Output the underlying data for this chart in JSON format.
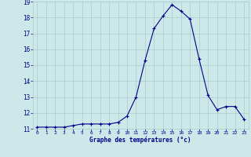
{
  "hours": [
    0,
    1,
    2,
    3,
    4,
    5,
    6,
    7,
    8,
    9,
    10,
    11,
    12,
    13,
    14,
    15,
    16,
    17,
    18,
    19,
    20,
    21,
    22,
    23
  ],
  "temps": [
    11.1,
    11.1,
    11.1,
    11.1,
    11.2,
    11.3,
    11.3,
    11.3,
    11.3,
    11.4,
    11.8,
    13.0,
    15.3,
    17.3,
    18.1,
    18.8,
    18.4,
    17.9,
    15.4,
    13.1,
    12.2,
    12.4,
    12.4,
    11.6
  ],
  "line_color": "#00008b",
  "marker": "+",
  "bg_color": "#cce8e8",
  "grid_color": "#aacccc",
  "xlabel": "Graphe des températures (°c)",
  "xlabel_color": "#00008b",
  "tick_label_color": "#00008b",
  "ylim": [
    11,
    19
  ],
  "xlim": [
    -0.5,
    23.5
  ],
  "yticks": [
    11,
    12,
    13,
    14,
    15,
    16,
    17,
    18,
    19
  ],
  "xticks": [
    0,
    1,
    2,
    3,
    4,
    5,
    6,
    7,
    8,
    9,
    10,
    11,
    12,
    13,
    14,
    15,
    16,
    17,
    18,
    19,
    20,
    21,
    22,
    23
  ]
}
